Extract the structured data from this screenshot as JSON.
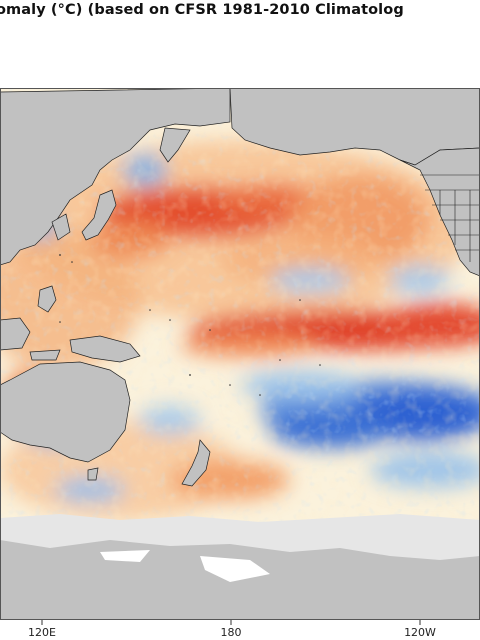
{
  "title": "omaly (°C) (based on CFSR 1981-2010 Climatolog",
  "axis": {
    "x_ticks": [
      "120E",
      "180",
      "120W"
    ]
  },
  "colors": {
    "land": "#c1c1c1",
    "ocean_neutral": "#fbf5e0",
    "warm_strong": "#e2402a",
    "warm": "#f5a36b",
    "cool": "#8fbce4",
    "cool_strong": "#2c63d3",
    "ice": "#ffffff",
    "coast": "#000000"
  }
}
